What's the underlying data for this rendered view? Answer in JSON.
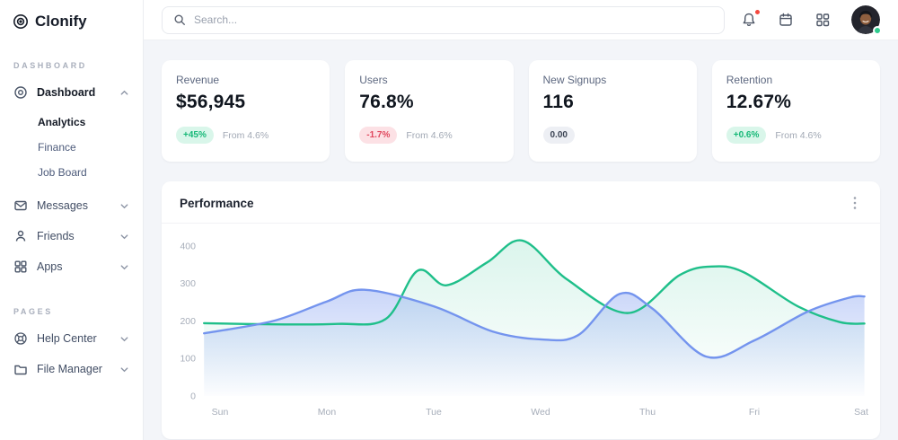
{
  "brand": {
    "name": "Clonify"
  },
  "sidebar": {
    "sections": [
      {
        "label": "DASHBOARD",
        "items": [
          {
            "label": "Dashboard",
            "icon": "dashboard-icon",
            "active": true,
            "expanded": true,
            "children": [
              {
                "label": "Analytics",
                "active": true
              },
              {
                "label": "Finance"
              },
              {
                "label": "Job Board"
              }
            ]
          },
          {
            "label": "Messages",
            "icon": "envelope-icon"
          },
          {
            "label": "Friends",
            "icon": "person-icon"
          },
          {
            "label": "Apps",
            "icon": "grid-icon"
          }
        ]
      },
      {
        "label": "PAGES",
        "items": [
          {
            "label": "Help Center",
            "icon": "lifebuoy-icon"
          },
          {
            "label": "File Manager",
            "icon": "folder-icon"
          }
        ]
      }
    ]
  },
  "topbar": {
    "search_placeholder": "Search...",
    "icons": [
      "bell-icon",
      "calendar-icon",
      "apps-grid-icon",
      "avatar"
    ],
    "notification_dot_color": "#f4493f",
    "avatar_status_color": "#2fcb8e"
  },
  "stats": {
    "cards": [
      {
        "title": "Revenue",
        "value": "$56,945",
        "badge": {
          "text": "+45%",
          "type": "up"
        },
        "caption": "From 4.6%"
      },
      {
        "title": "Users",
        "value": "76.8%",
        "badge": {
          "text": "-1.7%",
          "type": "down"
        },
        "caption": "From 4.6%"
      },
      {
        "title": "New Signups",
        "value": "116",
        "badge": {
          "text": "0.00",
          "type": "neutral"
        },
        "caption": ""
      },
      {
        "title": "Retention",
        "value": "12.67%",
        "badge": {
          "text": "+0.6%",
          "type": "up"
        },
        "caption": "From 4.6%"
      }
    ]
  },
  "performance": {
    "title": "Performance"
  },
  "chart_data": {
    "type": "area",
    "title": "Performance",
    "xlabel": "",
    "ylabel": "",
    "x_labels": [
      "Sun",
      "Mon",
      "Tue",
      "Wed",
      "Thu",
      "Fri",
      "Sat"
    ],
    "y_ticks": [
      0,
      100,
      200,
      300,
      400
    ],
    "ylim": [
      0,
      430
    ],
    "grid": false,
    "legend": "none",
    "series": [
      {
        "name": "green-series",
        "color": "#1fbf8a",
        "fill_from": "rgba(31,191,138,0.16)",
        "fill_to": "rgba(31,191,138,0)",
        "values": [
          194,
          192,
          312,
          396,
          246,
          312,
          193
        ],
        "control_points": [
          [
            -0.15,
            194
          ],
          [
            0.5,
            191
          ],
          [
            1.1,
            192
          ],
          [
            1.55,
            205
          ],
          [
            1.85,
            334
          ],
          [
            2.12,
            295
          ],
          [
            2.5,
            356
          ],
          [
            2.83,
            414
          ],
          [
            3.25,
            310
          ],
          [
            3.82,
            221
          ],
          [
            4.3,
            322
          ],
          [
            4.6,
            345
          ],
          [
            4.9,
            330
          ],
          [
            5.4,
            240
          ],
          [
            5.8,
            197
          ],
          [
            6.03,
            193
          ]
        ]
      },
      {
        "name": "blue-series",
        "color": "#7494ee",
        "fill_from": "rgba(116,148,238,0.38)",
        "fill_to": "rgba(116,148,238,0.02)",
        "values": [
          167,
          252,
          239,
          151,
          240,
          148,
          265
        ],
        "control_points": [
          [
            -0.15,
            167
          ],
          [
            0.5,
            200
          ],
          [
            1.0,
            252
          ],
          [
            1.35,
            283
          ],
          [
            2.0,
            239
          ],
          [
            2.55,
            172
          ],
          [
            3.0,
            151
          ],
          [
            3.35,
            162
          ],
          [
            3.74,
            272
          ],
          [
            4.05,
            232
          ],
          [
            4.55,
            105
          ],
          [
            5.0,
            148
          ],
          [
            5.5,
            225
          ],
          [
            5.9,
            263
          ],
          [
            6.03,
            265
          ]
        ]
      }
    ]
  }
}
